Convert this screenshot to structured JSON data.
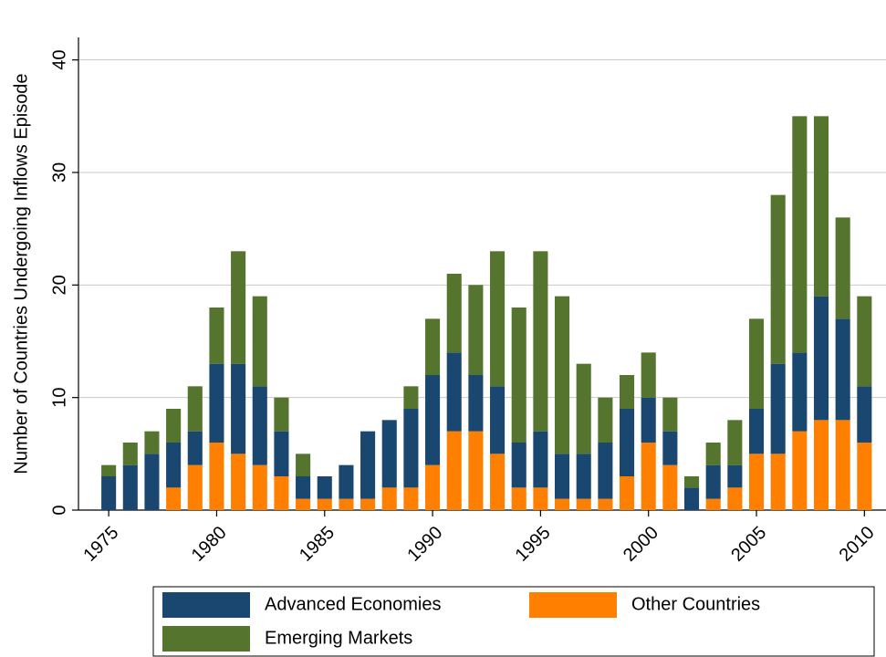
{
  "chart_data": {
    "type": "stacked_bar",
    "y_label": "Number of Countries Undergoing Inflows Episode",
    "x": [
      1975,
      1976,
      1977,
      1978,
      1979,
      1980,
      1981,
      1982,
      1983,
      1984,
      1985,
      1986,
      1987,
      1988,
      1989,
      1990,
      1991,
      1992,
      1993,
      1994,
      1995,
      1996,
      1997,
      1998,
      1999,
      2000,
      2001,
      2002,
      2003,
      2004,
      2005,
      2006,
      2007,
      2008,
      2009,
      2010
    ],
    "series": [
      {
        "name": "Other Countries",
        "color": "#ff8000",
        "values": [
          0,
          0,
          0,
          2,
          4,
          6,
          5,
          4,
          3,
          1,
          1,
          1,
          1,
          2,
          2,
          4,
          7,
          7,
          5,
          2,
          2,
          1,
          1,
          1,
          3,
          6,
          4,
          0,
          1,
          2,
          5,
          5,
          7,
          8,
          8,
          6
        ]
      },
      {
        "name": "Advanced Economies",
        "color": "#1a476f",
        "values": [
          3,
          4,
          5,
          4,
          3,
          7,
          8,
          7,
          4,
          2,
          2,
          3,
          6,
          6,
          7,
          8,
          7,
          5,
          6,
          4,
          5,
          4,
          4,
          5,
          6,
          4,
          3,
          2,
          3,
          2,
          4,
          8,
          7,
          11,
          9,
          5
        ]
      },
      {
        "name": "Emerging Markets",
        "color": "#55752f",
        "values": [
          1,
          2,
          2,
          3,
          4,
          5,
          10,
          8,
          3,
          2,
          0,
          0,
          0,
          0,
          2,
          5,
          7,
          8,
          12,
          12,
          16,
          14,
          8,
          4,
          3,
          4,
          3,
          1,
          2,
          4,
          8,
          15,
          21,
          16,
          9,
          8
        ]
      }
    ],
    "xlim": [
      1973.6,
      2011
    ],
    "xticks": [
      1975,
      1980,
      1985,
      1990,
      1995,
      2000,
      2005,
      2010
    ],
    "ylim": [
      0,
      42
    ],
    "yticks": [
      0,
      10,
      20,
      30,
      40
    ],
    "grid": true
  }
}
